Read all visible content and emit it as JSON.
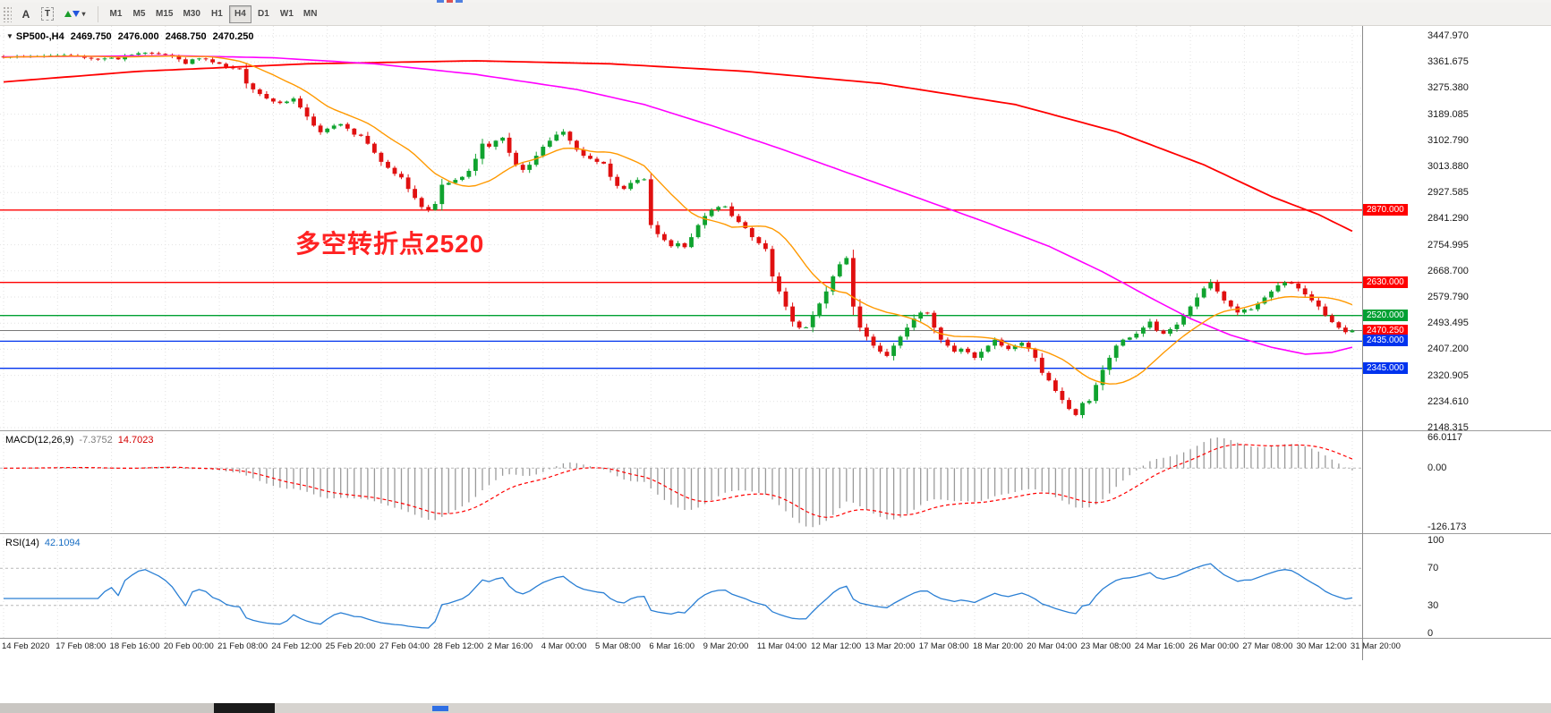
{
  "toolbar": {
    "buttons": [
      {
        "id": "arrow-text",
        "label": "A"
      },
      {
        "id": "text-label",
        "label": "T"
      }
    ],
    "timeframes": [
      {
        "label": "M1",
        "active": false
      },
      {
        "label": "M5",
        "active": false
      },
      {
        "label": "M15",
        "active": false
      },
      {
        "label": "M30",
        "active": false
      },
      {
        "label": "H1",
        "active": false
      },
      {
        "label": "H4",
        "active": true
      },
      {
        "label": "D1",
        "active": false
      },
      {
        "label": "W1",
        "active": false
      },
      {
        "label": "MN",
        "active": false
      }
    ]
  },
  "symbol_line": {
    "symbol": "SP500-,H4",
    "open": "2469.750",
    "high": "2476.000",
    "low": "2468.750",
    "close": "2470.250"
  },
  "annotation": {
    "text": "多空转折点2520",
    "color": "#ff2222"
  },
  "price_axis_ticks": [
    "3447.970",
    "3361.675",
    "3275.380",
    "3189.085",
    "3102.790",
    "3013.880",
    "2927.585",
    "2841.290",
    "2754.995",
    "2668.700",
    "2579.790",
    "2493.495",
    "2407.200",
    "2320.905",
    "2234.610",
    "2148.315"
  ],
  "price_tags": [
    {
      "price": 2870.0,
      "label": "2870.000",
      "color": "#ff0000",
      "current": false
    },
    {
      "price": 2630.0,
      "label": "2630.000",
      "color": "#ff0000",
      "current": false
    },
    {
      "price": 2520.0,
      "label": "2520.000",
      "color": "#00a032",
      "current": false
    },
    {
      "price": 2470.25,
      "label": "2470.250",
      "color": "#ff0000",
      "current": true
    },
    {
      "price": 2435.0,
      "label": "2435.000",
      "color": "#0033ee",
      "current": false
    },
    {
      "price": 2345.0,
      "label": "2345.000",
      "color": "#0033ee",
      "current": false
    }
  ],
  "macd_panel": {
    "title": "MACD(12,26,9)",
    "value": "-7.3752",
    "signal_value": "14.7023",
    "axis_labels": [
      "66.0117",
      "0.00",
      "-126.173"
    ]
  },
  "rsi_panel": {
    "title": "RSI(14)",
    "value": "42.1094",
    "axis_labels": [
      "100",
      "70",
      "30",
      "0"
    ],
    "axis_values": [
      100,
      70,
      30,
      0
    ]
  },
  "chart_data": {
    "type": "candlestick",
    "symbol": "SP500-",
    "timeframe": "H4",
    "last_ohlc": {
      "open": 2469.75,
      "high": 2476.0,
      "low": 2468.75,
      "close": 2470.25
    },
    "price_axis_range": [
      2148.315,
      3447.97
    ],
    "bars_per_gridline": 8,
    "up_color": "#10a32f",
    "down_color": "#e01010",
    "closes": [
      3376,
      3378,
      3380,
      3379,
      3380,
      3380,
      3381,
      3382,
      3383,
      3384,
      3383,
      3382,
      3375,
      3372,
      3370,
      3373,
      3375,
      3370,
      3380,
      3385,
      3390,
      3392,
      3390,
      3388,
      3385,
      3380,
      3370,
      3355,
      3370,
      3373,
      3370,
      3360,
      3355,
      3345,
      3340,
      3338,
      3290,
      3270,
      3255,
      3240,
      3230,
      3225,
      3230,
      3240,
      3210,
      3180,
      3150,
      3128,
      3140,
      3150,
      3155,
      3140,
      3120,
      3116,
      3090,
      3060,
      3030,
      3010,
      2990,
      2978,
      2940,
      2910,
      2880,
      2870,
      2890,
      2954,
      2960,
      2970,
      2980,
      3000,
      3040,
      3090,
      3080,
      3100,
      3110,
      3060,
      3020,
      3003,
      3020,
      3050,
      3080,
      3100,
      3120,
      3130,
      3100,
      3070,
      3050,
      3040,
      3030,
      3024,
      2980,
      2950,
      2940,
      2960,
      2970,
      2972,
      2820,
      2790,
      2770,
      2750,
      2760,
      2747,
      2780,
      2820,
      2850,
      2870,
      2880,
      2882,
      2850,
      2830,
      2810,
      2780,
      2760,
      2741,
      2650,
      2600,
      2550,
      2500,
      2480,
      2481,
      2520,
      2560,
      2600,
      2650,
      2690,
      2711,
      2550,
      2480,
      2450,
      2420,
      2400,
      2386,
      2420,
      2450,
      2480,
      2510,
      2530,
      2529,
      2480,
      2440,
      2420,
      2400,
      2410,
      2398,
      2380,
      2400,
      2420,
      2440,
      2420,
      2409,
      2420,
      2430,
      2410,
      2380,
      2330,
      2305,
      2270,
      2240,
      2210,
      2190,
      2230,
      2237,
      2290,
      2340,
      2380,
      2420,
      2440,
      2447,
      2460,
      2480,
      2500,
      2470,
      2460,
      2475,
      2490,
      2520,
      2550,
      2580,
      2610,
      2630,
      2600,
      2570,
      2550,
      2530,
      2540,
      2541,
      2560,
      2580,
      2600,
      2620,
      2630,
      2626,
      2610,
      2590,
      2570,
      2550,
      2520,
      2498,
      2480,
      2465,
      2470.25
    ],
    "overlays": {
      "ma_fast_sma_period": 13,
      "ma_fast_color": "#ff9900",
      "ma_mid_color": "#ff00ff",
      "ma_mid_points": [
        [
          0,
          3378
        ],
        [
          25,
          3382
        ],
        [
          40,
          3375
        ],
        [
          55,
          3355
        ],
        [
          70,
          3320
        ],
        [
          85,
          3270
        ],
        [
          95,
          3220
        ],
        [
          105,
          3150
        ],
        [
          115,
          3075
        ],
        [
          125,
          2995
        ],
        [
          135,
          2915
        ],
        [
          145,
          2835
        ],
        [
          155,
          2750
        ],
        [
          163,
          2665
        ],
        [
          170,
          2580
        ],
        [
          176,
          2510
        ],
        [
          182,
          2455
        ],
        [
          188,
          2415
        ],
        [
          193,
          2392
        ],
        [
          197,
          2398
        ],
        [
          200,
          2415
        ]
      ],
      "ma_slow_color": "#ff0000",
      "ma_slow_points": [
        [
          0,
          3295
        ],
        [
          20,
          3330
        ],
        [
          45,
          3355
        ],
        [
          70,
          3365
        ],
        [
          90,
          3355
        ],
        [
          110,
          3330
        ],
        [
          130,
          3290
        ],
        [
          150,
          3220
        ],
        [
          165,
          3130
        ],
        [
          178,
          3020
        ],
        [
          188,
          2915
        ],
        [
          195,
          2855
        ],
        [
          200,
          2800
        ]
      ]
    },
    "horizontal_lines": [
      {
        "price": 2870,
        "color": "#ff0000"
      },
      {
        "price": 2630,
        "color": "#ff0000"
      },
      {
        "price": 2520,
        "color": "#00a032"
      },
      {
        "price": 2435,
        "color": "#0033ee"
      },
      {
        "price": 2345,
        "color": "#0033ee"
      }
    ],
    "current_price": 2470.25,
    "indicators": [
      {
        "type": "MACD",
        "params": [
          12,
          26,
          9
        ],
        "current_main": -7.3752,
        "current_signal": 14.7023,
        "axis": [
          66.0117,
          0.0,
          -126.173
        ],
        "histogram_color": "#9a9a9a",
        "signal_color": "#ff0000"
      },
      {
        "type": "RSI",
        "params": [
          14
        ],
        "current": 42.1094,
        "levels": [
          30,
          70
        ],
        "axis": [
          100,
          70,
          30,
          0
        ],
        "line_color": "#2a7fd4"
      }
    ],
    "x_labels": [
      "14 Feb 2020",
      "17 Feb 08:00",
      "18 Feb 16:00",
      "20 Feb 00:00",
      "21 Feb 08:00",
      "24 Feb 12:00",
      "25 Feb 20:00",
      "27 Feb 04:00",
      "28 Feb 12:00",
      "2 Mar 16:00",
      "4 Mar 00:00",
      "5 Mar 08:00",
      "6 Mar 16:00",
      "9 Mar 20:00",
      "11 Mar 04:00",
      "12 Mar 12:00",
      "13 Mar 20:00",
      "17 Mar 08:00",
      "18 Mar 20:00",
      "20 Mar 04:00",
      "23 Mar 08:00",
      "24 Mar 16:00",
      "26 Mar 00:00",
      "27 Mar 08:00",
      "30 Mar 12:00",
      "31 Mar 20:00"
    ]
  }
}
